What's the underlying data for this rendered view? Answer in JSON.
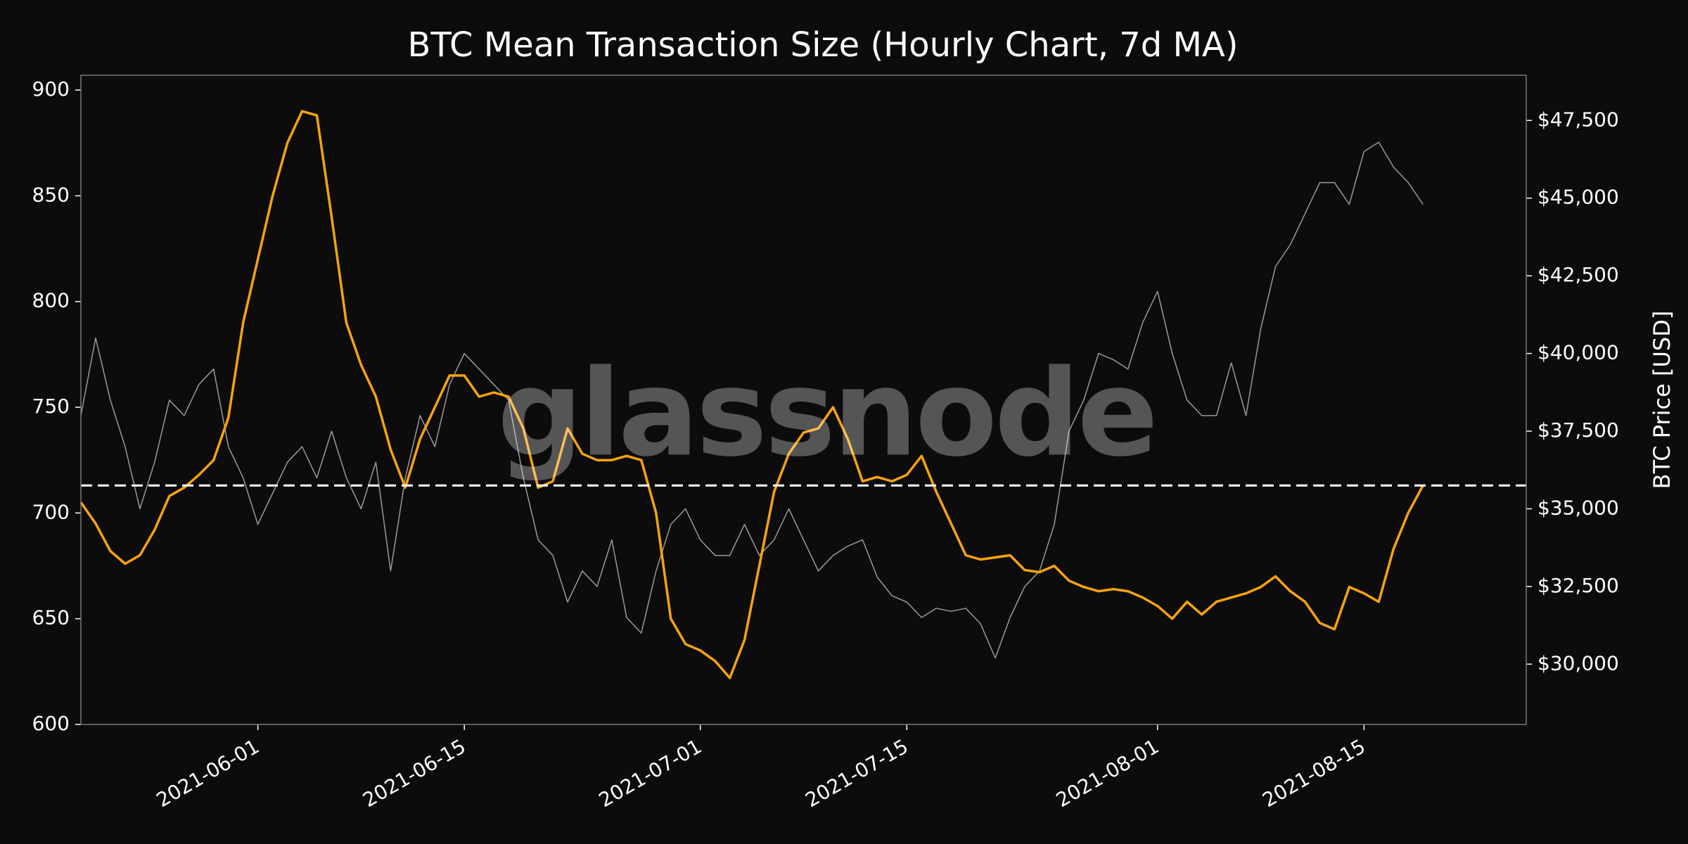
{
  "chart_data": {
    "type": "line",
    "title": "BTC Mean Transaction Size (Hourly Chart, 7d MA)",
    "y2_label": "BTC Price [USD]",
    "watermark": "glassnode",
    "x": [
      "2021-05-20",
      "2021-05-21",
      "2021-05-22",
      "2021-05-23",
      "2021-05-24",
      "2021-05-25",
      "2021-05-26",
      "2021-05-27",
      "2021-05-28",
      "2021-05-29",
      "2021-05-30",
      "2021-05-31",
      "2021-06-01",
      "2021-06-02",
      "2021-06-03",
      "2021-06-04",
      "2021-06-05",
      "2021-06-06",
      "2021-06-07",
      "2021-06-08",
      "2021-06-09",
      "2021-06-10",
      "2021-06-11",
      "2021-06-12",
      "2021-06-13",
      "2021-06-14",
      "2021-06-15",
      "2021-06-16",
      "2021-06-17",
      "2021-06-18",
      "2021-06-19",
      "2021-06-20",
      "2021-06-21",
      "2021-06-22",
      "2021-06-23",
      "2021-06-24",
      "2021-06-25",
      "2021-06-26",
      "2021-06-27",
      "2021-06-28",
      "2021-06-29",
      "2021-06-30",
      "2021-07-01",
      "2021-07-02",
      "2021-07-03",
      "2021-07-04",
      "2021-07-05",
      "2021-07-06",
      "2021-07-07",
      "2021-07-08",
      "2021-07-09",
      "2021-07-10",
      "2021-07-11",
      "2021-07-12",
      "2021-07-13",
      "2021-07-14",
      "2021-07-15",
      "2021-07-16",
      "2021-07-17",
      "2021-07-18",
      "2021-07-19",
      "2021-07-20",
      "2021-07-21",
      "2021-07-22",
      "2021-07-23",
      "2021-07-24",
      "2021-07-25",
      "2021-07-26",
      "2021-07-27",
      "2021-07-28",
      "2021-07-29",
      "2021-07-30",
      "2021-07-31",
      "2021-08-01",
      "2021-08-02",
      "2021-08-03",
      "2021-08-04",
      "2021-08-05",
      "2021-08-06",
      "2021-08-07",
      "2021-08-08",
      "2021-08-09",
      "2021-08-10",
      "2021-08-11",
      "2021-08-12",
      "2021-08-13",
      "2021-08-14",
      "2021-08-15",
      "2021-08-16",
      "2021-08-17",
      "2021-08-18",
      "2021-08-19"
    ],
    "series": [
      {
        "name": "Mean Transaction Size",
        "color": "#f7a30f",
        "axis": "y",
        "values": [
          705,
          695,
          682,
          676,
          680,
          692,
          708,
          712,
          718,
          725,
          745,
          790,
          820,
          850,
          875,
          890,
          888,
          840,
          790,
          770,
          755,
          730,
          712,
          735,
          750,
          765,
          765,
          755,
          757,
          755,
          740,
          712,
          715,
          740,
          728,
          725,
          725,
          727,
          725,
          700,
          650,
          638,
          635,
          630,
          622,
          640,
          675,
          710,
          728,
          738,
          740,
          750,
          735,
          715,
          717,
          715,
          718,
          727,
          710,
          695,
          680,
          678,
          679,
          680,
          673,
          672,
          675,
          668,
          665,
          663,
          664,
          663,
          660,
          656,
          650,
          658,
          652,
          658,
          660,
          662,
          665,
          670,
          663,
          658,
          648,
          645,
          665,
          662,
          658,
          683,
          700,
          713
        ]
      },
      {
        "name": "BTC Price",
        "color": "#9a9a9a",
        "axis": "y2",
        "values": [
          38000,
          40500,
          38500,
          37000,
          35000,
          36500,
          38500,
          38000,
          39000,
          39500,
          37000,
          36000,
          34500,
          35500,
          36500,
          37000,
          36000,
          37500,
          36000,
          35000,
          36500,
          33000,
          36000,
          38000,
          37000,
          39000,
          40000,
          39500,
          39000,
          38500,
          36000,
          34000,
          33500,
          32000,
          33000,
          32500,
          34000,
          31500,
          31000,
          33000,
          34500,
          35000,
          34000,
          33500,
          33500,
          34500,
          33500,
          34000,
          35000,
          34000,
          33000,
          33500,
          33800,
          34000,
          32800,
          32200,
          32000,
          31500,
          31800,
          31700,
          31800,
          31300,
          30200,
          31500,
          32500,
          33000,
          34500,
          37500,
          38500,
          40000,
          39800,
          39500,
          41000,
          42000,
          40000,
          38500,
          38000,
          38000,
          39700,
          38000,
          40800,
          42800,
          43500,
          44500,
          45500,
          45500,
          44800,
          46500,
          46800,
          46000,
          45500,
          44800
        ]
      }
    ],
    "hline": {
      "value": 713,
      "color": "#ffffff",
      "style": "dashed"
    },
    "xlim": [
      "2021-05-20",
      "2021-08-26"
    ],
    "xticks": [
      "2021-06-01",
      "2021-06-15",
      "2021-07-01",
      "2021-07-15",
      "2021-08-01",
      "2021-08-15"
    ],
    "ylim": [
      600,
      907
    ],
    "yticks": [
      600,
      650,
      700,
      750,
      800,
      850,
      900
    ],
    "y2lim": [
      28060,
      48955
    ],
    "y2ticks": [
      {
        "value": 30000,
        "label": "$30,000"
      },
      {
        "value": 32500,
        "label": "$32,500"
      },
      {
        "value": 35000,
        "label": "$35,000"
      },
      {
        "value": 37500,
        "label": "$37,500"
      },
      {
        "value": 40000,
        "label": "$40,000"
      },
      {
        "value": 42500,
        "label": "$42,500"
      },
      {
        "value": 45000,
        "label": "$45,000"
      },
      {
        "value": 47500,
        "label": "$47,500"
      }
    ],
    "grid": false
  }
}
